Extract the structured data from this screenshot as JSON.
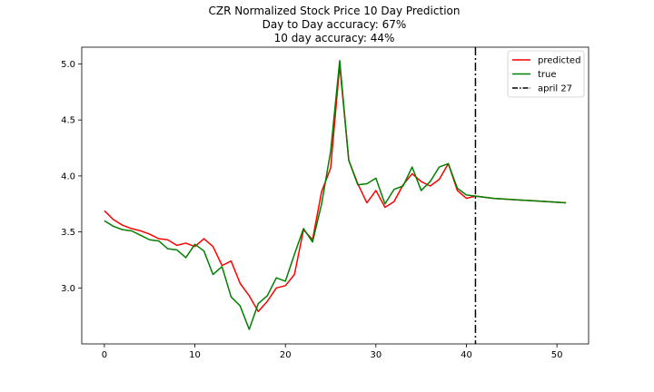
{
  "chart_data": {
    "type": "line",
    "title_lines": [
      "CZR Normalized Stock Price 10 Day Prediction",
      "Day to Day accuracy: 67%",
      "10 day accuracy: 44%"
    ],
    "xlabel": "",
    "ylabel": "",
    "xlim": [
      -2.5,
      53.5
    ],
    "ylim": [
      2.5,
      5.15
    ],
    "x_ticks": [
      0,
      10,
      20,
      30,
      40,
      50
    ],
    "y_ticks": [
      3.0,
      3.5,
      4.0,
      4.5,
      5.0
    ],
    "grid": false,
    "legend_position": "top-right",
    "series": [
      {
        "name": "predicted",
        "color": "#ff0000",
        "x": [
          0,
          1,
          2,
          3,
          4,
          5,
          6,
          7,
          8,
          9,
          10,
          11,
          12,
          13,
          14,
          15,
          16,
          17,
          18,
          19,
          20,
          21,
          22,
          23,
          24,
          25,
          26,
          27,
          28,
          29,
          30,
          31,
          32,
          33,
          34,
          35,
          36,
          37,
          38,
          39,
          40,
          41,
          42,
          43,
          44,
          45,
          46,
          47,
          48,
          49,
          50,
          51
        ],
        "y": [
          3.69,
          3.61,
          3.56,
          3.53,
          3.51,
          3.48,
          3.44,
          3.43,
          3.38,
          3.4,
          3.37,
          3.44,
          3.37,
          3.2,
          3.24,
          3.04,
          2.93,
          2.79,
          2.88,
          3.0,
          3.02,
          3.12,
          3.52,
          3.43,
          3.86,
          4.07,
          4.99,
          4.14,
          3.93,
          3.76,
          3.87,
          3.72,
          3.77,
          3.92,
          4.02,
          3.95,
          3.91,
          3.97,
          4.11,
          3.87,
          3.8,
          3.82,
          3.81,
          3.8,
          3.795,
          3.79,
          3.785,
          3.78,
          3.775,
          3.77,
          3.765,
          3.76
        ]
      },
      {
        "name": "true",
        "color": "#008000",
        "x": [
          0,
          1,
          2,
          3,
          4,
          5,
          6,
          7,
          8,
          9,
          10,
          11,
          12,
          13,
          14,
          15,
          16,
          17,
          18,
          19,
          20,
          21,
          22,
          23,
          24,
          25,
          26,
          27,
          28,
          29,
          30,
          31,
          32,
          33,
          34,
          35,
          36,
          37,
          38,
          39,
          40,
          41,
          42,
          43,
          44,
          45,
          46,
          47,
          48,
          49,
          50,
          51
        ],
        "y": [
          3.6,
          3.55,
          3.52,
          3.51,
          3.47,
          3.43,
          3.42,
          3.35,
          3.34,
          3.27,
          3.39,
          3.33,
          3.12,
          3.19,
          2.92,
          2.84,
          2.63,
          2.86,
          2.93,
          3.09,
          3.06,
          3.3,
          3.53,
          3.41,
          3.75,
          4.22,
          5.03,
          4.14,
          3.92,
          3.93,
          3.98,
          3.75,
          3.88,
          3.91,
          4.08,
          3.87,
          3.95,
          4.08,
          4.11,
          3.89,
          3.83,
          3.82,
          3.81,
          3.8,
          3.795,
          3.79,
          3.785,
          3.78,
          3.775,
          3.77,
          3.765,
          3.76
        ]
      }
    ],
    "vlines": [
      {
        "name": "april 27",
        "x": 41,
        "color": "#000000",
        "style": "dashdot"
      }
    ]
  }
}
